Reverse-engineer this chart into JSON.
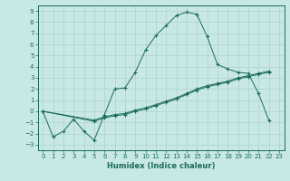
{
  "xlabel": "Humidex (Indice chaleur)",
  "background_color": "#c8e8e8",
  "grid_color": "#b0d0d0",
  "line_color": "#1a6b5a",
  "xlim": [
    -0.5,
    23.5
  ],
  "ylim": [
    -3.5,
    9.5
  ],
  "xticks": [
    0,
    1,
    2,
    3,
    4,
    5,
    6,
    7,
    8,
    9,
    10,
    11,
    12,
    13,
    14,
    15,
    16,
    17,
    18,
    19,
    20,
    21,
    22,
    23
  ],
  "yticks": [
    -3,
    -2,
    -1,
    0,
    1,
    2,
    3,
    4,
    5,
    6,
    7,
    8,
    9
  ],
  "line1_x": [
    0,
    1,
    2,
    3,
    4,
    5,
    6,
    7,
    8,
    9,
    10,
    11,
    12,
    13,
    14,
    15,
    16,
    17,
    18,
    19,
    20,
    21,
    22
  ],
  "line1_y": [
    0,
    -2.3,
    -1.8,
    -0.7,
    -1.8,
    -2.6,
    -0.3,
    2.0,
    2.1,
    3.5,
    5.5,
    6.8,
    7.7,
    8.6,
    8.9,
    8.7,
    6.7,
    4.2,
    3.8,
    3.5,
    3.4,
    1.6,
    -0.8
  ],
  "line2_x": [
    0,
    5,
    6,
    7,
    8,
    9,
    10,
    11,
    12,
    13,
    14,
    15,
    16,
    17,
    18,
    19,
    20,
    21,
    22
  ],
  "line2_y": [
    0,
    -0.8,
    -0.5,
    -0.3,
    -0.2,
    0.1,
    0.3,
    0.6,
    0.9,
    1.2,
    1.6,
    2.0,
    2.3,
    2.5,
    2.7,
    3.0,
    3.2,
    3.4,
    3.6
  ],
  "line3_x": [
    0,
    5,
    6,
    7,
    8,
    9,
    10,
    11,
    12,
    13,
    14,
    15,
    16,
    17,
    18,
    19,
    20,
    21,
    22
  ],
  "line3_y": [
    0,
    -0.9,
    -0.6,
    -0.4,
    -0.3,
    0.0,
    0.2,
    0.5,
    0.8,
    1.1,
    1.5,
    1.9,
    2.2,
    2.4,
    2.6,
    2.9,
    3.1,
    3.3,
    3.5
  ],
  "tick_fontsize": 5,
  "xlabel_fontsize": 6,
  "linewidth": 0.7,
  "markersize": 2.5
}
